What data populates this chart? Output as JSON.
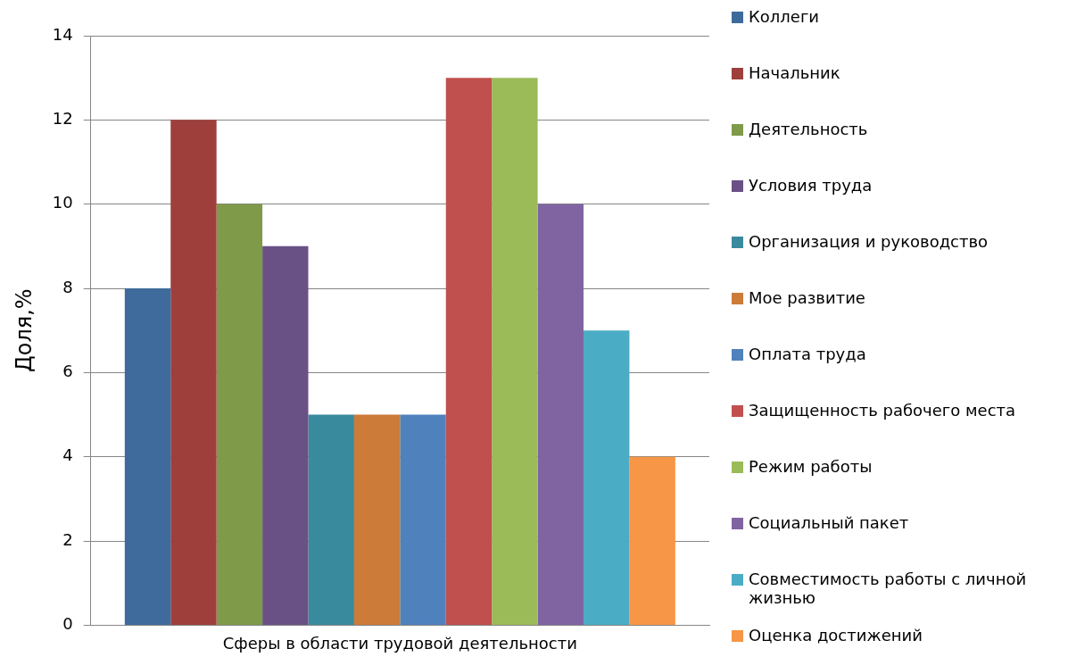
{
  "chart_data": {
    "type": "bar",
    "ylabel": "Доля,%",
    "categories": [
      "Сферы в области трудовой деятельности"
    ],
    "series": [
      {
        "name": "Коллеги",
        "color": "#3f6b9c",
        "values": [
          8
        ]
      },
      {
        "name": "Начальник",
        "color": "#9e3f3c",
        "values": [
          12
        ]
      },
      {
        "name": "Деятельность",
        "color": "#7f9a48",
        "values": [
          10
        ]
      },
      {
        "name": "Условия труда",
        "color": "#695185",
        "values": [
          9
        ]
      },
      {
        "name": "Организация и руководство",
        "color": "#3a8a9e",
        "values": [
          5
        ]
      },
      {
        "name": "Мое развитие",
        "color": "#cc7b38",
        "values": [
          5
        ]
      },
      {
        "name": "Оплата труда",
        "color": "#4f81bd",
        "values": [
          5
        ]
      },
      {
        "name": "Защищенность рабочего места",
        "color": "#c0504d",
        "values": [
          13
        ]
      },
      {
        "name": "Режим работы",
        "color": "#9bbb59",
        "values": [
          13
        ]
      },
      {
        "name": "Социальный пакет",
        "color": "#8064a2",
        "values": [
          10
        ]
      },
      {
        "name": "Совместимость работы с личной жизнью",
        "color": "#4bacc6",
        "values": [
          7
        ]
      },
      {
        "name": "Оценка достижений",
        "color": "#f79646",
        "values": [
          4
        ]
      }
    ],
    "ylim": [
      0,
      14
    ],
    "yticks": [
      0,
      2,
      4,
      6,
      8,
      10,
      12,
      14
    ],
    "grid": "y",
    "legend": "right"
  }
}
